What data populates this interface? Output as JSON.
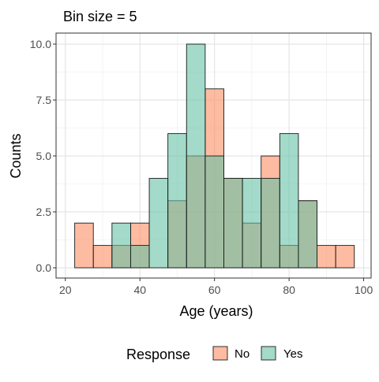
{
  "chart_data": {
    "type": "bar",
    "subtype": "overlapping-histogram",
    "title": "Bin size = 5",
    "xlabel": "Age (years)",
    "ylabel": "Counts",
    "xlim": [
      20,
      100
    ],
    "ylim": [
      0,
      10
    ],
    "x_ticks": [
      20,
      40,
      60,
      80,
      100
    ],
    "y_ticks": [
      0.0,
      2.5,
      5.0,
      7.5,
      10.0
    ],
    "y_tick_labels": [
      "0.0",
      "2.5",
      "5.0",
      "7.5",
      "10.0"
    ],
    "grid": true,
    "bin_width": 5,
    "legend": {
      "title": "Response",
      "position": "bottom"
    },
    "bin_centers": [
      25,
      30,
      35,
      40,
      45,
      50,
      55,
      60,
      65,
      70,
      75,
      80,
      85,
      90,
      95
    ],
    "series": [
      {
        "name": "No",
        "color": "#FC8D62",
        "values": [
          2,
          1,
          1,
          2,
          0,
          3,
          5,
          8,
          4,
          2,
          5,
          1,
          3,
          1,
          1
        ]
      },
      {
        "name": "Yes",
        "color": "#66C2A5",
        "values": [
          0,
          0,
          2,
          1,
          4,
          6,
          10,
          5,
          4,
          4,
          4,
          6,
          3,
          0,
          0
        ]
      }
    ]
  }
}
